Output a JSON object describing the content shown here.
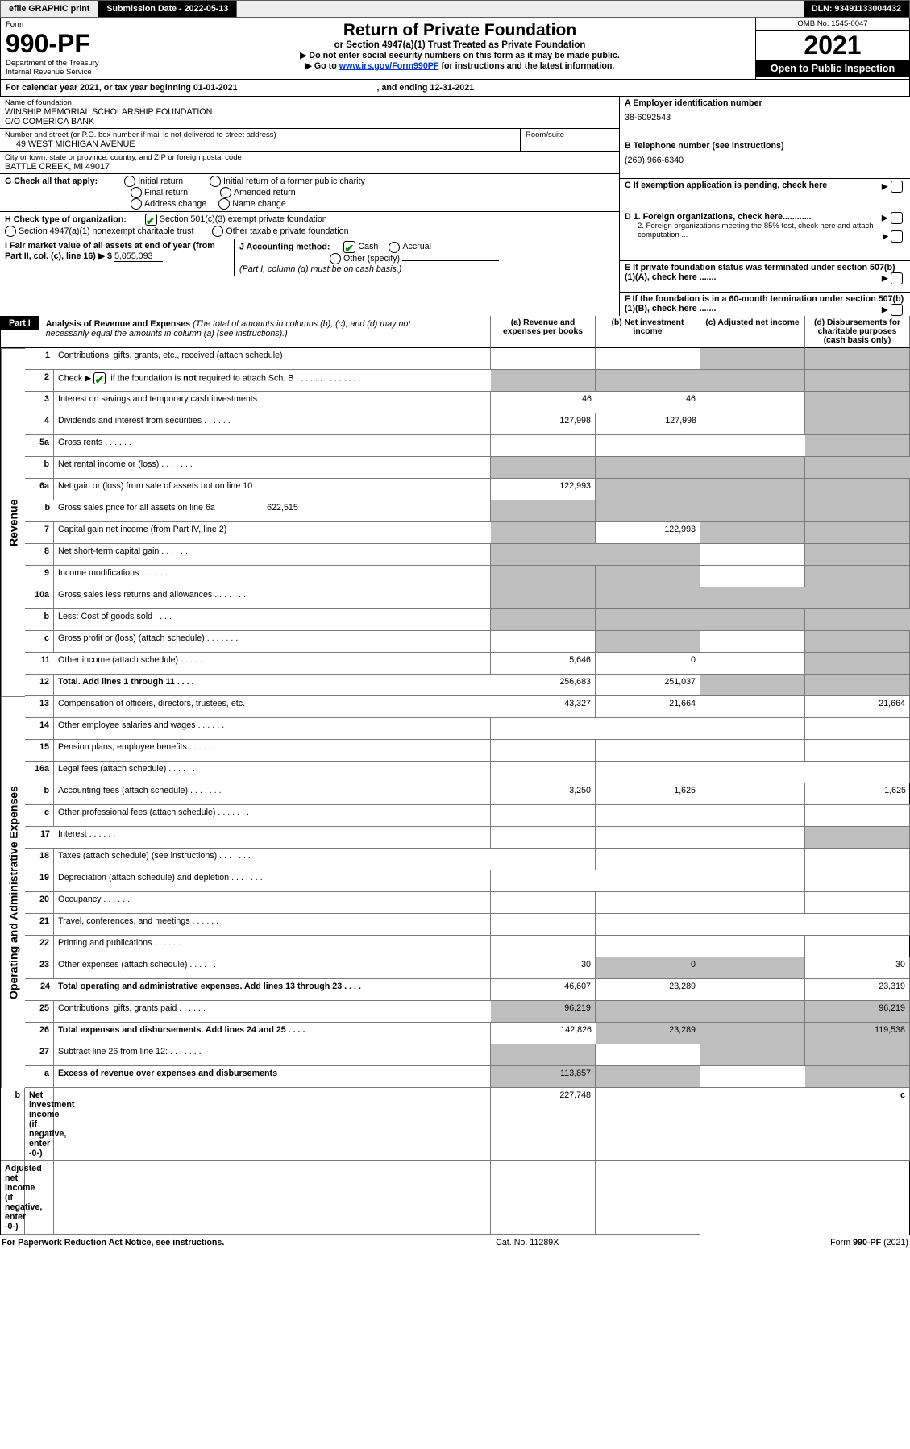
{
  "topbar": {
    "efile": "efile GRAPHIC print",
    "submission_label": "Submission Date - 2022-05-13",
    "dln": "DLN: 93491133004432"
  },
  "header": {
    "form_word": "Form",
    "form_num": "990-PF",
    "dept": "Department of the Treasury",
    "irs": "Internal Revenue Service",
    "title": "Return of Private Foundation",
    "subtitle": "or Section 4947(a)(1) Trust Treated as Private Foundation",
    "instr1": "▶ Do not enter social security numbers on this form as it may be made public.",
    "instr2_pre": "▶ Go to ",
    "instr2_link": "www.irs.gov/Form990PF",
    "instr2_post": " for instructions and the latest information.",
    "omb": "OMB No. 1545-0047",
    "year": "2021",
    "open": "Open to Public Inspection"
  },
  "cal": {
    "text1": "For calendar year 2021, or tax year beginning ",
    "begin": "01-01-2021",
    "text2": ", and ending ",
    "end": "12-31-2021"
  },
  "id": {
    "name_lbl": "Name of foundation",
    "name1": "WINSHIP MEMORIAL SCHOLARSHIP FOUNDATION",
    "name2": "C/O COMERICA BANK",
    "ein_lbl": "A Employer identification number",
    "ein": "38-6092543",
    "addr_lbl": "Number and street (or P.O. box number if mail is not delivered to street address)",
    "addr": "49 WEST MICHIGAN AVENUE",
    "room_lbl": "Room/suite",
    "phone_lbl": "B Telephone number (see instructions)",
    "phone": "(269) 966-6340",
    "city_lbl": "City or town, state or province, country, and ZIP or foreign postal code",
    "city": "BATTLE CREEK, MI  49017",
    "c_lbl": "C If exemption application is pending, check here"
  },
  "g": {
    "label": "G Check all that apply:",
    "opt1": "Initial return",
    "opt2": "Initial return of a former public charity",
    "opt3": "Final return",
    "opt4": "Amended return",
    "opt5": "Address change",
    "opt6": "Name change"
  },
  "d": {
    "d1": "D 1. Foreign organizations, check here............",
    "d2": "2. Foreign organizations meeting the 85% test, check here and attach computation ...",
    "e": "E  If private foundation status was terminated under section 507(b)(1)(A), check here .......",
    "f": "F  If the foundation is in a 60-month termination under section 507(b)(1)(B), check here ......."
  },
  "h": {
    "label": "H Check type of organization:",
    "opt1": "Section 501(c)(3) exempt private foundation",
    "opt2": "Section 4947(a)(1) nonexempt charitable trust",
    "opt3": "Other taxable private foundation"
  },
  "i": {
    "label": "I Fair market value of all assets at end of year (from Part II, col. (c), line 16) ▶ $",
    "val": "5,055,093"
  },
  "j": {
    "label": "J Accounting method:",
    "cash": "Cash",
    "accrual": "Accrual",
    "other": "Other (specify)",
    "note": "(Part I, column (d) must be on cash basis.)"
  },
  "part1": {
    "label": "Part I",
    "title": "Analysis of Revenue and Expenses",
    "title_note": " (The total of amounts in columns (b), (c), and (d) may not necessarily equal the amounts in column (a) (see instructions).)",
    "col_a": "(a)   Revenue and expenses per books",
    "col_b": "(b)   Net investment income",
    "col_c": "(c)   Adjusted net income",
    "col_d": "(d)   Disbursements for charitable purposes (cash basis only)"
  },
  "side": {
    "rev": "Revenue",
    "exp": "Operating and Administrative Expenses"
  },
  "rows": [
    {
      "n": "1",
      "t": "Contributions, gifts, grants, etc., received (attach schedule)"
    },
    {
      "n": "2",
      "t": "Check ▶ ✔ if the foundation is not required to attach Sch. B",
      "hasCheck": true
    },
    {
      "n": "3",
      "t": "Interest on savings and temporary cash investments",
      "a": "46",
      "b": "46"
    },
    {
      "n": "4",
      "t": "Dividends and interest from securities",
      "a": "127,998",
      "b": "127,998"
    },
    {
      "n": "5a",
      "t": "Gross rents"
    },
    {
      "n": "b",
      "t": "Net rental income or (loss)"
    },
    {
      "n": "6a",
      "t": "Net gain or (loss) from sale of assets not on line 10",
      "a": "122,993"
    },
    {
      "n": "b",
      "t": "Gross sales price for all assets on line 6a",
      "inline": "622,515"
    },
    {
      "n": "7",
      "t": "Capital gain net income (from Part IV, line 2)",
      "b": "122,993"
    },
    {
      "n": "8",
      "t": "Net short-term capital gain"
    },
    {
      "n": "9",
      "t": "Income modifications"
    },
    {
      "n": "10a",
      "t": "Gross sales less returns and allowances"
    },
    {
      "n": "b",
      "t": "Less: Cost of goods sold"
    },
    {
      "n": "c",
      "t": "Gross profit or (loss) (attach schedule)"
    },
    {
      "n": "11",
      "t": "Other income (attach schedule)",
      "a": "5,646",
      "b": "0"
    },
    {
      "n": "12",
      "t": "Total. Add lines 1 through 11",
      "a": "256,683",
      "b": "251,037",
      "bold": true
    },
    {
      "n": "13",
      "t": "Compensation of officers, directors, trustees, etc.",
      "a": "43,327",
      "b": "21,664",
      "d": "21,664"
    },
    {
      "n": "14",
      "t": "Other employee salaries and wages"
    },
    {
      "n": "15",
      "t": "Pension plans, employee benefits"
    },
    {
      "n": "16a",
      "t": "Legal fees (attach schedule)"
    },
    {
      "n": "b",
      "t": "Accounting fees (attach schedule)",
      "a": "3,250",
      "b": "1,625",
      "d": "1,625"
    },
    {
      "n": "c",
      "t": "Other professional fees (attach schedule)"
    },
    {
      "n": "17",
      "t": "Interest"
    },
    {
      "n": "18",
      "t": "Taxes (attach schedule) (see instructions)"
    },
    {
      "n": "19",
      "t": "Depreciation (attach schedule) and depletion"
    },
    {
      "n": "20",
      "t": "Occupancy"
    },
    {
      "n": "21",
      "t": "Travel, conferences, and meetings"
    },
    {
      "n": "22",
      "t": "Printing and publications"
    },
    {
      "n": "23",
      "t": "Other expenses (attach schedule)",
      "a": "30",
      "b": "0",
      "d": "30"
    },
    {
      "n": "24",
      "t": "Total operating and administrative expenses. Add lines 13 through 23",
      "a": "46,607",
      "b": "23,289",
      "d": "23,319",
      "bold": true
    },
    {
      "n": "25",
      "t": "Contributions, gifts, grants paid",
      "a": "96,219",
      "d": "96,219"
    },
    {
      "n": "26",
      "t": "Total expenses and disbursements. Add lines 24 and 25",
      "a": "142,826",
      "b": "23,289",
      "d": "119,538",
      "bold": true
    },
    {
      "n": "27",
      "t": "Subtract line 26 from line 12:"
    },
    {
      "n": "a",
      "t": "Excess of revenue over expenses and disbursements",
      "a": "113,857",
      "bold": true
    },
    {
      "n": "b",
      "t": "Net investment income (if negative, enter -0-)",
      "b": "227,748",
      "bold": true
    },
    {
      "n": "c",
      "t": "Adjusted net income (if negative, enter -0-)",
      "bold": true
    }
  ],
  "grey_cells": {
    "1": [
      "c",
      "d"
    ],
    "2": [
      "a",
      "b",
      "c",
      "d"
    ],
    "3": [
      "d"
    ],
    "4": [
      "d"
    ],
    "5a": [
      "d"
    ],
    "b_5": [
      "a",
      "b",
      "c",
      "d"
    ],
    "6a": [
      "b",
      "c",
      "d"
    ],
    "b_6": [
      "a",
      "b",
      "c",
      "d"
    ],
    "7": [
      "a",
      "c",
      "d"
    ],
    "8": [
      "a",
      "b",
      "d"
    ],
    "9": [
      "a",
      "b",
      "d"
    ],
    "10a": [
      "a",
      "b",
      "c",
      "d"
    ],
    "b_10": [
      "a",
      "b",
      "c",
      "d"
    ],
    "c_10": [
      "b",
      "d"
    ],
    "11": [
      "d"
    ],
    "12": [
      "c",
      "d"
    ],
    "19": [
      "d"
    ],
    "25": [
      "b",
      "c"
    ],
    "27": [
      "a",
      "b",
      "c",
      "d"
    ],
    "a_27": [
      "b",
      "c",
      "d"
    ],
    "b_rev": [
      "a",
      "c",
      "d"
    ],
    "c_rev": [
      "a",
      "b",
      "d"
    ]
  },
  "footer": {
    "left": "For Paperwork Reduction Act Notice, see instructions.",
    "mid": "Cat. No. 11289X",
    "right": "Form 990-PF (2021)"
  },
  "colors": {
    "grey": "#bfbfbf",
    "border": "#000000"
  }
}
